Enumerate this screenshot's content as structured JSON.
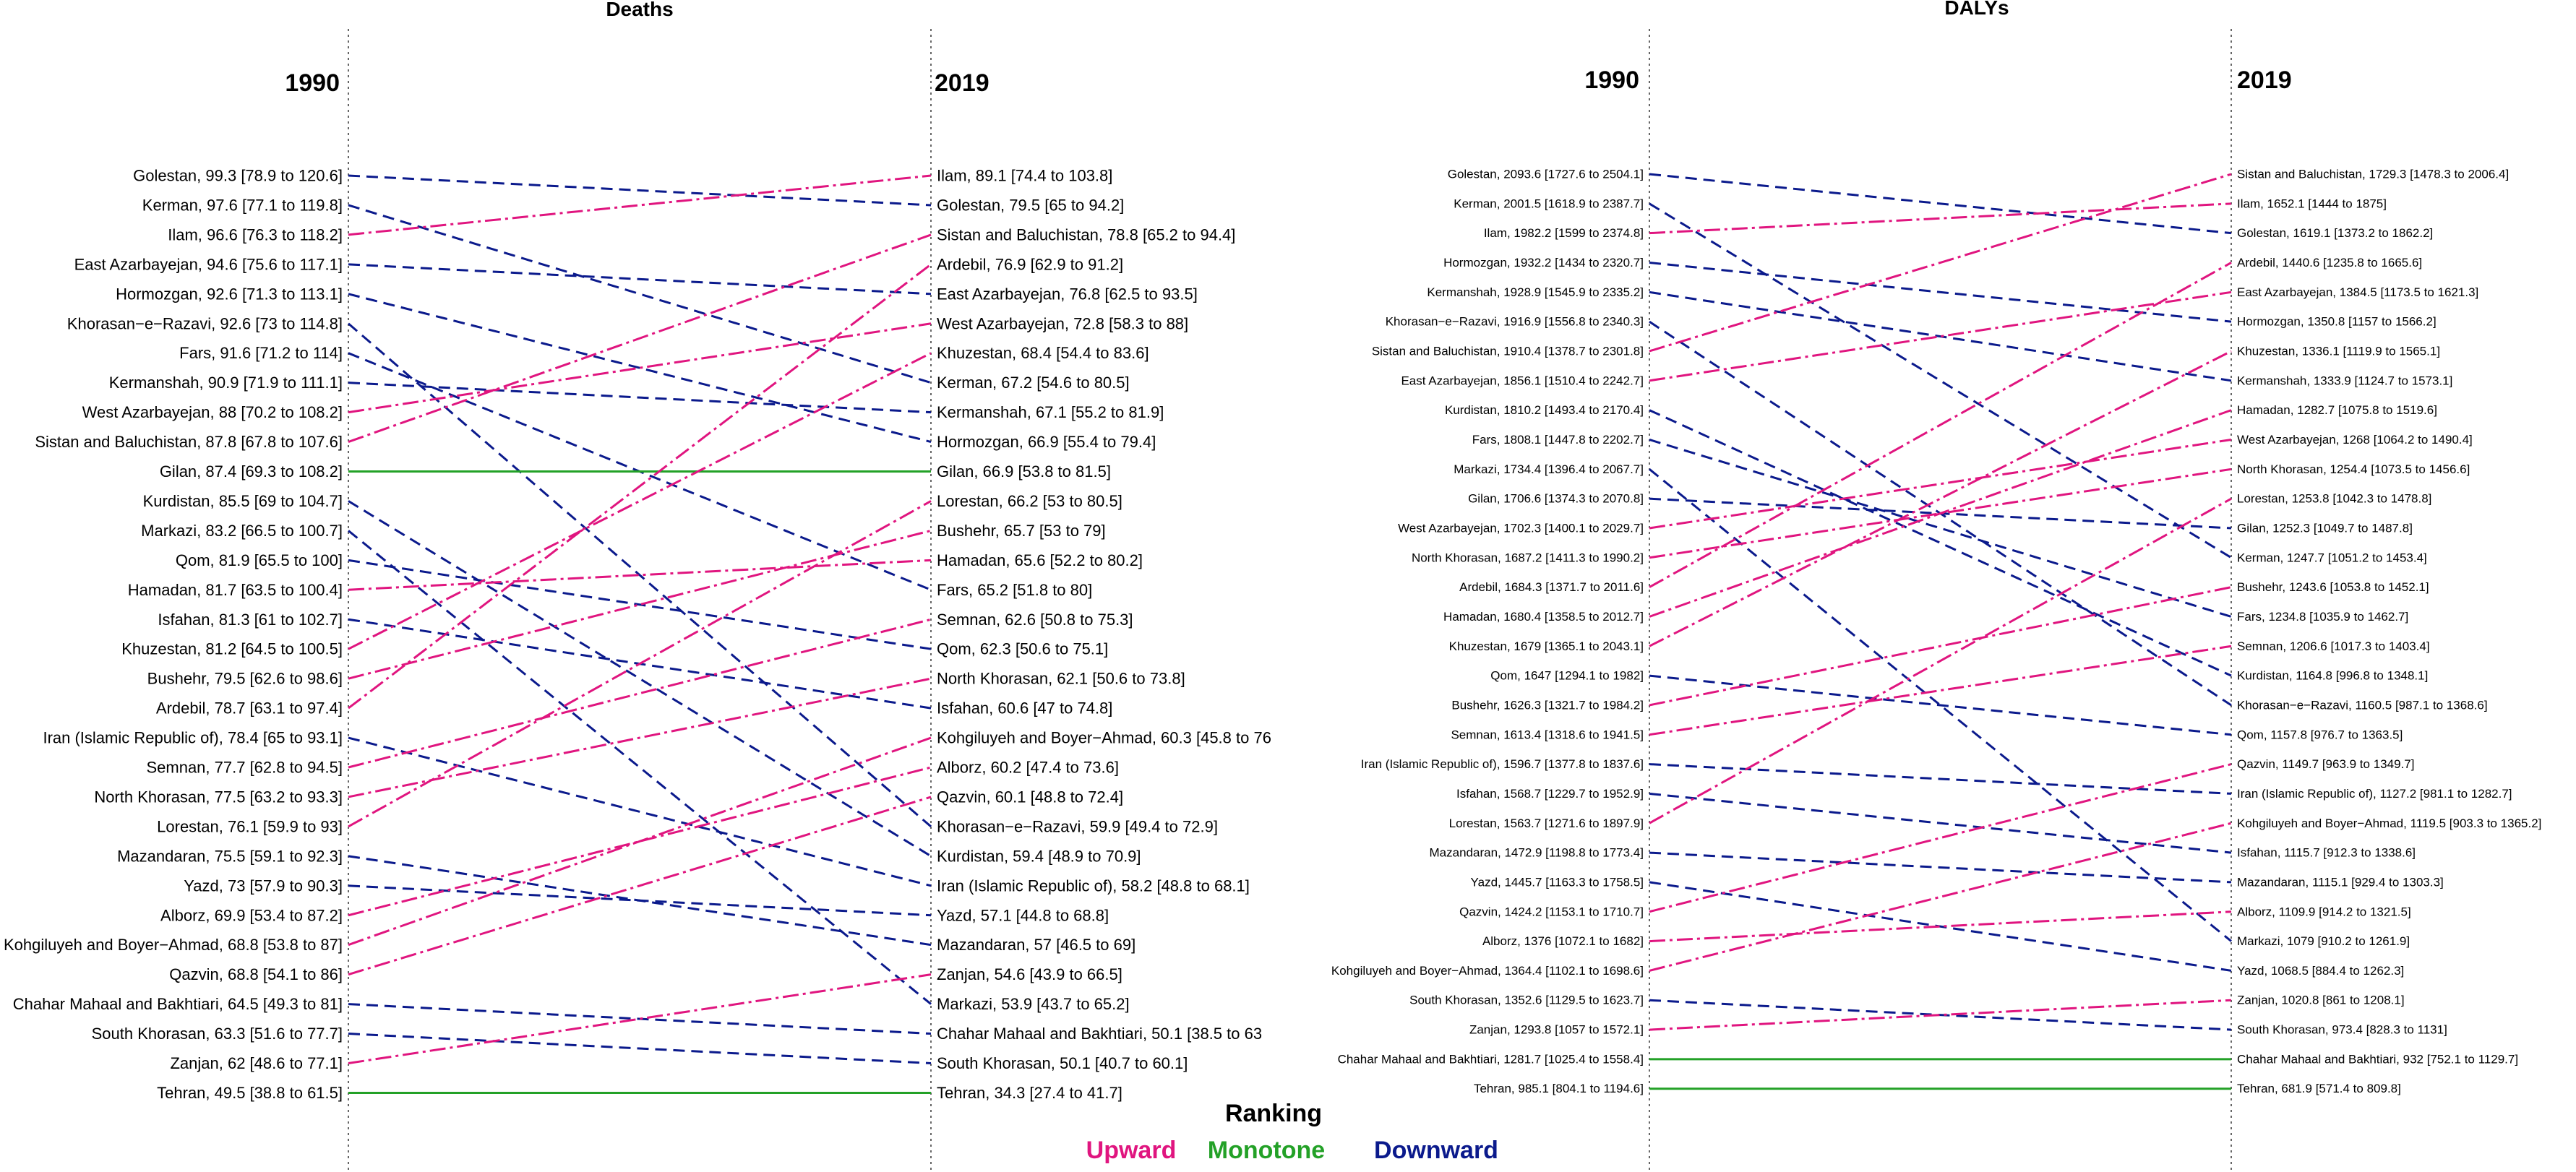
{
  "colors": {
    "upward": "#E0157F",
    "monotone": "#23A127",
    "downward": "#0B1A8C"
  },
  "legend": {
    "title": "Ranking",
    "items": [
      {
        "key": "upward",
        "label": "Upward"
      },
      {
        "key": "monotone",
        "label": "Monotone"
      },
      {
        "key": "downward",
        "label": "Downward"
      }
    ]
  },
  "chart_data": [
    {
      "type": "slope",
      "title": "Deaths",
      "left_label": "1990",
      "right_label": "2019",
      "left": [
        "Golestan, 99.3 [78.9 to 120.6]",
        "Kerman, 97.6 [77.1 to 119.8]",
        "Ilam, 96.6 [76.3 to 118.2]",
        "East Azarbayejan, 94.6 [75.6 to 117.1]",
        "Hormozgan, 92.6 [71.3 to 113.1]",
        "Khorasan−e−Razavi, 92.6 [73 to 114.8]",
        "Fars, 91.6 [71.2 to 114]",
        "Kermanshah, 90.9 [71.9 to 111.1]",
        "West Azarbayejan, 88 [70.2 to 108.2]",
        "Sistan and Baluchistan, 87.8 [67.8 to 107.6]",
        "Gilan, 87.4 [69.3 to 108.2]",
        "Kurdistan, 85.5 [69 to 104.7]",
        "Markazi, 83.2 [66.5 to 100.7]",
        "Qom, 81.9 [65.5 to 100]",
        "Hamadan, 81.7 [63.5 to 100.4]",
        "Isfahan, 81.3 [61 to 102.7]",
        "Khuzestan, 81.2 [64.5 to 100.5]",
        "Bushehr, 79.5 [62.6 to 98.6]",
        "Ardebil, 78.7 [63.1 to 97.4]",
        "Iran (Islamic Republic of), 78.4 [65 to 93.1]",
        "Semnan, 77.7 [62.8 to 94.5]",
        "North Khorasan, 77.5 [63.2 to 93.3]",
        "Lorestan, 76.1 [59.9 to 93]",
        "Mazandaran, 75.5 [59.1 to 92.3]",
        "Yazd, 73 [57.9 to 90.3]",
        "Alborz, 69.9 [53.4 to 87.2]",
        "Kohgiluyeh and Boyer−Ahmad, 68.8 [53.8 to 87]",
        "Qazvin, 68.8 [54.1 to 86]",
        "Chahar Mahaal and Bakhtiari, 64.5 [49.3 to 81]",
        "South Khorasan, 63.3 [51.6 to 77.7]",
        "Zanjan, 62 [48.6 to 77.1]",
        "Tehran, 49.5 [38.8 to 61.5]"
      ],
      "right": [
        "Ilam, 89.1 [74.4 to 103.8]",
        "Golestan, 79.5 [65 to 94.2]",
        "Sistan and Baluchistan, 78.8 [65.2 to 94.4]",
        "Ardebil, 76.9 [62.9 to 91.2]",
        "East Azarbayejan, 76.8 [62.5 to 93.5]",
        "West Azarbayejan, 72.8 [58.3 to 88]",
        "Khuzestan, 68.4 [54.4 to 83.6]",
        "Kerman, 67.2 [54.6 to 80.5]",
        "Kermanshah, 67.1 [55.2 to 81.9]",
        "Hormozgan, 66.9 [55.4 to 79.4]",
        "Gilan, 66.9 [53.8 to 81.5]",
        "Lorestan, 66.2 [53 to 80.5]",
        "Bushehr, 65.7 [53 to 79]",
        "Hamadan, 65.6 [52.2 to 80.2]",
        "Fars, 65.2 [51.8 to 80]",
        "Semnan, 62.6 [50.8 to 75.3]",
        "Qom, 62.3 [50.6 to 75.1]",
        "North Khorasan, 62.1 [50.6 to 73.8]",
        "Isfahan, 60.6 [47 to 74.8]",
        "Kohgiluyeh and Boyer−Ahmad, 60.3 [45.8 to 76",
        "Alborz, 60.2 [47.4 to 73.6]",
        "Qazvin, 60.1 [48.8 to 72.4]",
        "Khorasan−e−Razavi, 59.9 [49.4 to 72.9]",
        "Kurdistan, 59.4 [48.9 to 70.9]",
        "Iran (Islamic Republic of), 58.2 [48.8 to 68.1]",
        "Yazd, 57.1 [44.8 to 68.8]",
        "Mazandaran, 57 [46.5 to 69]",
        "Zanjan, 54.6 [43.9 to 66.5]",
        "Markazi, 53.9 [43.7 to 65.2]",
        "Chahar Mahaal and Bakhtiari, 50.1 [38.5 to 63",
        "South Khorasan, 50.1 [40.7 to 60.1]",
        "Tehran, 34.3 [27.4 to 41.7]"
      ]
    },
    {
      "type": "slope",
      "title": "DALYs",
      "left_label": "1990",
      "right_label": "2019",
      "left": [
        "Golestan, 2093.6 [1727.6 to 2504.1]",
        "Kerman, 2001.5 [1618.9 to 2387.7]",
        "Ilam, 1982.2 [1599 to 2374.8]",
        "Hormozgan, 1932.2 [1434 to 2320.7]",
        "Kermanshah, 1928.9 [1545.9 to 2335.2]",
        "Khorasan−e−Razavi, 1916.9 [1556.8 to 2340.3]",
        "Sistan and Baluchistan, 1910.4 [1378.7 to 2301.8]",
        "East Azarbayejan, 1856.1 [1510.4 to 2242.7]",
        "Kurdistan, 1810.2 [1493.4 to 2170.4]",
        "Fars, 1808.1 [1447.8 to 2202.7]",
        "Markazi, 1734.4 [1396.4 to 2067.7]",
        "Gilan, 1706.6 [1374.3 to 2070.8]",
        "West Azarbayejan, 1702.3 [1400.1 to 2029.7]",
        "North Khorasan, 1687.2 [1411.3 to 1990.2]",
        "Ardebil, 1684.3 [1371.7 to 2011.6]",
        "Hamadan, 1680.4 [1358.5 to 2012.7]",
        "Khuzestan, 1679 [1365.1 to 2043.1]",
        "Qom, 1647 [1294.1 to 1982]",
        "Bushehr, 1626.3 [1321.7 to 1984.2]",
        "Semnan, 1613.4 [1318.6 to 1941.5]",
        "Iran (Islamic Republic of), 1596.7 [1377.8 to 1837.6]",
        "Isfahan, 1568.7 [1229.7 to 1952.9]",
        "Lorestan, 1563.7 [1271.6 to 1897.9]",
        "Mazandaran, 1472.9 [1198.8 to 1773.4]",
        "Yazd, 1445.7 [1163.3 to 1758.5]",
        "Qazvin, 1424.2 [1153.1 to 1710.7]",
        "Alborz, 1376 [1072.1 to 1682]",
        "Kohgiluyeh and Boyer−Ahmad, 1364.4 [1102.1 to 1698.6]",
        "South Khorasan, 1352.6 [1129.5 to 1623.7]",
        "Zanjan, 1293.8 [1057 to 1572.1]",
        "Chahar Mahaal and Bakhtiari, 1281.7 [1025.4 to 1558.4]",
        "Tehran, 985.1 [804.1 to 1194.6]"
      ],
      "right": [
        "Sistan and Baluchistan, 1729.3 [1478.3 to 2006.4]",
        "Ilam, 1652.1 [1444 to 1875]",
        "Golestan, 1619.1 [1373.2 to 1862.2]",
        "Ardebil, 1440.6 [1235.8 to 1665.6]",
        "East Azarbayejan, 1384.5 [1173.5 to 1621.3]",
        "Hormozgan, 1350.8 [1157 to 1566.2]",
        "Khuzestan, 1336.1 [1119.9 to 1565.1]",
        "Kermanshah, 1333.9 [1124.7 to 1573.1]",
        "Hamadan, 1282.7 [1075.8 to 1519.6]",
        "West Azarbayejan, 1268 [1064.2 to 1490.4]",
        "North Khorasan, 1254.4 [1073.5 to 1456.6]",
        "Lorestan, 1253.8 [1042.3 to 1478.8]",
        "Gilan, 1252.3 [1049.7 to 1487.8]",
        "Kerman, 1247.7 [1051.2 to 1453.4]",
        "Bushehr, 1243.6 [1053.8 to 1452.1]",
        "Fars, 1234.8 [1035.9 to 1462.7]",
        "Semnan, 1206.6 [1017.3 to 1403.4]",
        "Kurdistan, 1164.8 [996.8 to 1348.1]",
        "Khorasan−e−Razavi, 1160.5 [987.1 to 1368.6]",
        "Qom, 1157.8 [976.7 to 1363.5]",
        "Qazvin, 1149.7 [963.9 to 1349.7]",
        "Iran (Islamic Republic of), 1127.2 [981.1 to 1282.7]",
        "Kohgiluyeh and Boyer−Ahmad, 1119.5 [903.3 to 1365.2]",
        "Isfahan, 1115.7 [912.3 to 1338.6]",
        "Mazandaran, 1115.1 [929.4 to 1303.3]",
        "Alborz, 1109.9 [914.2 to 1321.5]",
        "Markazi, 1079 [910.2 to 1261.9]",
        "Yazd, 1068.5 [884.4 to 1262.3]",
        "Zanjan, 1020.8 [861 to 1208.1]",
        "South Khorasan, 973.4 [828.3 to 1131]",
        "Chahar Mahaal and Bakhtiari, 932 [752.1 to 1129.7]",
        "Tehran, 681.9 [571.4 to 809.8]"
      ]
    }
  ]
}
